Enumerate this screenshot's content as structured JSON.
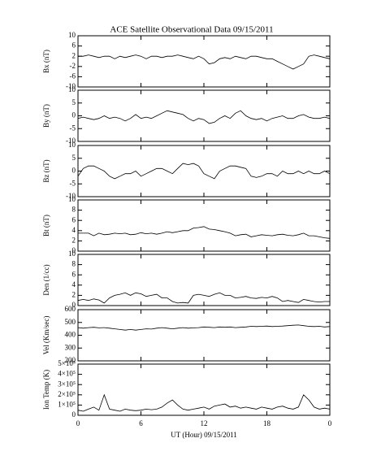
{
  "title": "ACE Satellite Observational Data   09/15/2011",
  "x_axis": {
    "label": "UT (Hour)  09/15/2011",
    "xlim": [
      0,
      24
    ],
    "xticks": [
      0,
      6,
      12,
      18,
      {
        "value": 24,
        "label": "0"
      }
    ],
    "x": [
      0,
      0.5,
      1,
      1.5,
      2,
      2.5,
      3,
      3.5,
      4,
      4.5,
      5,
      5.5,
      6,
      6.5,
      7,
      7.5,
      8,
      8.5,
      9,
      9.5,
      10,
      10.5,
      11,
      11.5,
      12,
      12.5,
      13,
      13.5,
      14,
      14.5,
      15,
      15.5,
      16,
      16.5,
      17,
      17.5,
      18,
      18.5,
      19,
      19.5,
      20,
      20.5,
      21,
      21.5,
      22,
      22.5,
      23,
      23.5,
      24
    ]
  },
  "chart_data": [
    {
      "type": "line",
      "ylabel": "Bx (nT)",
      "ylim": [
        -10,
        10
      ],
      "yticks": [
        -10,
        -6,
        -2,
        2,
        6,
        10
      ],
      "color": "#000000",
      "values": [
        2,
        2,
        2.5,
        2,
        1.5,
        2,
        2,
        1,
        2,
        1.5,
        2,
        2.5,
        2,
        1,
        2,
        2,
        1.5,
        2,
        2,
        2.5,
        2,
        1.5,
        1,
        2,
        1,
        -1,
        -0.5,
        1,
        1.5,
        1,
        2,
        1.5,
        1,
        2,
        2,
        1.5,
        1,
        1,
        0,
        -1,
        -2,
        -3,
        -2,
        -1,
        2,
        2.5,
        2,
        1.5,
        1
      ]
    },
    {
      "type": "line",
      "ylabel": "By (nT)",
      "ylim": [
        -10,
        10
      ],
      "yticks": [
        -10,
        -5,
        0,
        5,
        10
      ],
      "color": "#000000",
      "values": [
        -1,
        -0.5,
        -1,
        -1.5,
        -1,
        0,
        -1,
        -0.5,
        -1,
        -2,
        -1,
        0.5,
        -1,
        -0.5,
        -1,
        0,
        1,
        2,
        1.5,
        1,
        0.5,
        -1,
        -2,
        -1,
        -1.5,
        -3,
        -2.5,
        -1,
        0,
        -1,
        1,
        2,
        0,
        -1,
        -1.5,
        -1,
        -2,
        -1,
        -0.5,
        0,
        -1,
        -1,
        0,
        0.5,
        -0.5,
        -1,
        -1,
        -0.5,
        -1
      ]
    },
    {
      "type": "line",
      "ylabel": "Bz (nT)",
      "ylim": [
        -10,
        10
      ],
      "yticks": [
        -10,
        -5,
        0,
        5,
        10
      ],
      "color": "#000000",
      "values": [
        -2,
        1,
        2,
        2,
        1,
        0,
        -2,
        -3,
        -2,
        -1,
        -1,
        0,
        -2,
        -1,
        0,
        1,
        1,
        0,
        -1,
        1,
        3,
        2.5,
        3,
        2,
        -1,
        -2,
        -3,
        0,
        1,
        2,
        2,
        1.5,
        1,
        -2,
        -2.5,
        -2,
        -1,
        -1,
        -2,
        0,
        -1,
        -1,
        0,
        -1,
        0,
        -1,
        -1,
        0,
        -1
      ]
    },
    {
      "type": "line",
      "ylabel": "Bt (nT)",
      "ylim": [
        0,
        10
      ],
      "yticks": [
        0,
        2,
        4,
        6,
        8,
        10
      ],
      "color": "#000000",
      "values": [
        3.5,
        3.5,
        3.5,
        3,
        3.5,
        3.2,
        3.3,
        3.5,
        3.4,
        3.5,
        3.2,
        3.3,
        3.6,
        3.4,
        3.5,
        3.3,
        3.5,
        3.8,
        3.6,
        3.8,
        4,
        4,
        4.5,
        4.6,
        4.8,
        4.3,
        4.2,
        4,
        3.8,
        3.5,
        3,
        3.2,
        3.3,
        2.8,
        3,
        3.2,
        3.1,
        3,
        3.2,
        3.3,
        3.1,
        3,
        3.2,
        3.5,
        3,
        3,
        2.8,
        2.6,
        2.5
      ]
    },
    {
      "type": "line",
      "ylabel": "Den (1/cc)",
      "ylim": [
        0,
        10
      ],
      "yticks": [
        0,
        2,
        4,
        6,
        8,
        10
      ],
      "color": "#000000",
      "values": [
        1,
        1.2,
        1,
        1.3,
        1.1,
        0.5,
        1.5,
        2,
        2.2,
        2.5,
        2,
        2.5,
        2.3,
        1.8,
        2,
        2.2,
        1.5,
        1.5,
        0.8,
        0.5,
        0.6,
        0.5,
        2,
        2.2,
        2,
        1.8,
        2.2,
        2.5,
        2,
        2,
        1.5,
        1.6,
        1.8,
        1.5,
        1.4,
        1.6,
        1.5,
        1.8,
        1.5,
        0.8,
        1,
        0.8,
        0.6,
        1.2,
        1,
        0.8,
        0.7,
        0.8,
        0.8
      ]
    },
    {
      "type": "line",
      "ylabel": "Vel (Km/sec)",
      "ylim": [
        200,
        600
      ],
      "yticks": [
        200,
        300,
        400,
        500,
        600
      ],
      "color": "#000000",
      "values": [
        460,
        455,
        460,
        462,
        458,
        460,
        455,
        450,
        445,
        440,
        445,
        440,
        445,
        450,
        448,
        455,
        460,
        455,
        450,
        455,
        460,
        455,
        458,
        460,
        465,
        462,
        460,
        465,
        462,
        465,
        460,
        462,
        465,
        470,
        468,
        470,
        472,
        468,
        470,
        472,
        475,
        478,
        480,
        475,
        470,
        468,
        470,
        465,
        468
      ]
    },
    {
      "type": "line",
      "ylabel": "Ion Temp (K)",
      "ylim": [
        0,
        500000
      ],
      "yticks": [
        0,
        {
          "value": 100000,
          "label": "1×10⁵"
        },
        {
          "value": 200000,
          "label": "2×10⁵"
        },
        {
          "value": 300000,
          "label": "3×10⁵"
        },
        {
          "value": 400000,
          "label": "4×10⁵"
        },
        {
          "value": 500000,
          "label": "5×10⁵"
        }
      ],
      "color": "#000000",
      "values": [
        50000,
        40000,
        60000,
        80000,
        50000,
        200000,
        60000,
        50000,
        40000,
        60000,
        50000,
        45000,
        50000,
        60000,
        55000,
        60000,
        80000,
        120000,
        150000,
        100000,
        60000,
        50000,
        60000,
        70000,
        80000,
        60000,
        90000,
        100000,
        110000,
        80000,
        90000,
        70000,
        80000,
        70000,
        60000,
        80000,
        70000,
        60000,
        80000,
        90000,
        70000,
        60000,
        80000,
        200000,
        150000,
        80000,
        60000,
        70000,
        60000
      ]
    }
  ]
}
